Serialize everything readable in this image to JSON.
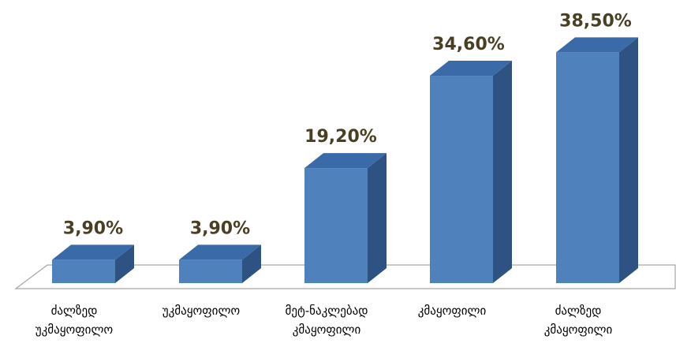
{
  "chart_data": {
    "type": "bar",
    "categories": [
      [
        "ძალზედ",
        "უკმაყოფილო"
      ],
      [
        "უკმაყოფილო"
      ],
      [
        "მეტ-ნაკლებად",
        "კმაყოფილი"
      ],
      [
        "კმაყოფილი"
      ],
      [
        "ძალზედ",
        "კმაყოფილი"
      ]
    ],
    "values": [
      3.9,
      3.9,
      19.2,
      34.6,
      38.5
    ],
    "value_labels": [
      "3,90%",
      "3,90%",
      "19,20%",
      "34,60%",
      "38,50%"
    ],
    "title": "",
    "xlabel": "",
    "ylabel": "",
    "ylim": [
      0,
      40
    ],
    "style": "3d-column",
    "grid": false,
    "legend": "none",
    "colors": {
      "bar_front": "#4f81bd",
      "bar_side": "#2e5282",
      "bar_top": "#3a6aa8",
      "floor_stroke": "#a6a6a6",
      "value_text": "#4a3f22"
    }
  }
}
